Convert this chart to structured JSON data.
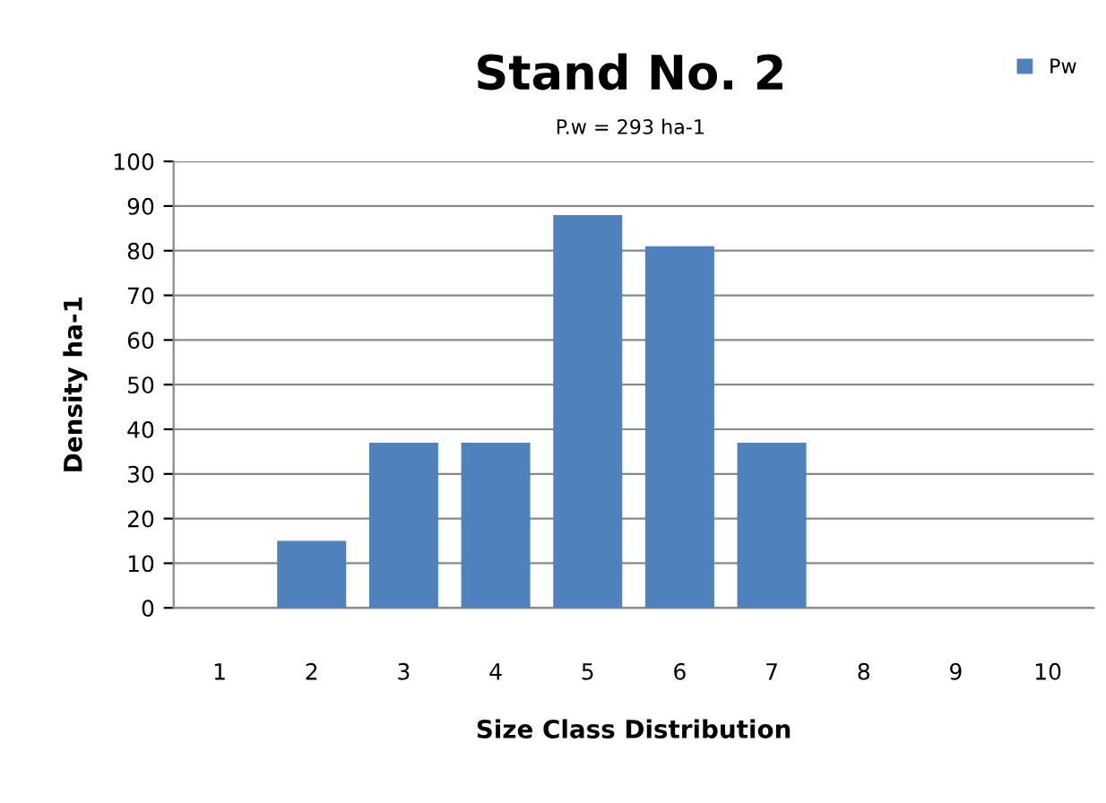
{
  "chart_data": {
    "type": "bar",
    "title": "Stand No. 2",
    "subtitle": "P.w = 293 ha-1",
    "xlabel": "Size Class Distribution",
    "ylabel": "Density ha-1",
    "categories": [
      "1",
      "2",
      "3",
      "4",
      "5",
      "6",
      "7",
      "8",
      "9",
      "10"
    ],
    "series": [
      {
        "name": "Pw",
        "color": "#4f81bd",
        "values": [
          0,
          15,
          37,
          37,
          88,
          81,
          37,
          0,
          0,
          0
        ]
      }
    ],
    "ylim": [
      0,
      100
    ],
    "yticks": [
      0,
      10,
      20,
      30,
      40,
      50,
      60,
      70,
      80,
      90,
      100
    ],
    "grid": "y",
    "legend": "top right"
  }
}
